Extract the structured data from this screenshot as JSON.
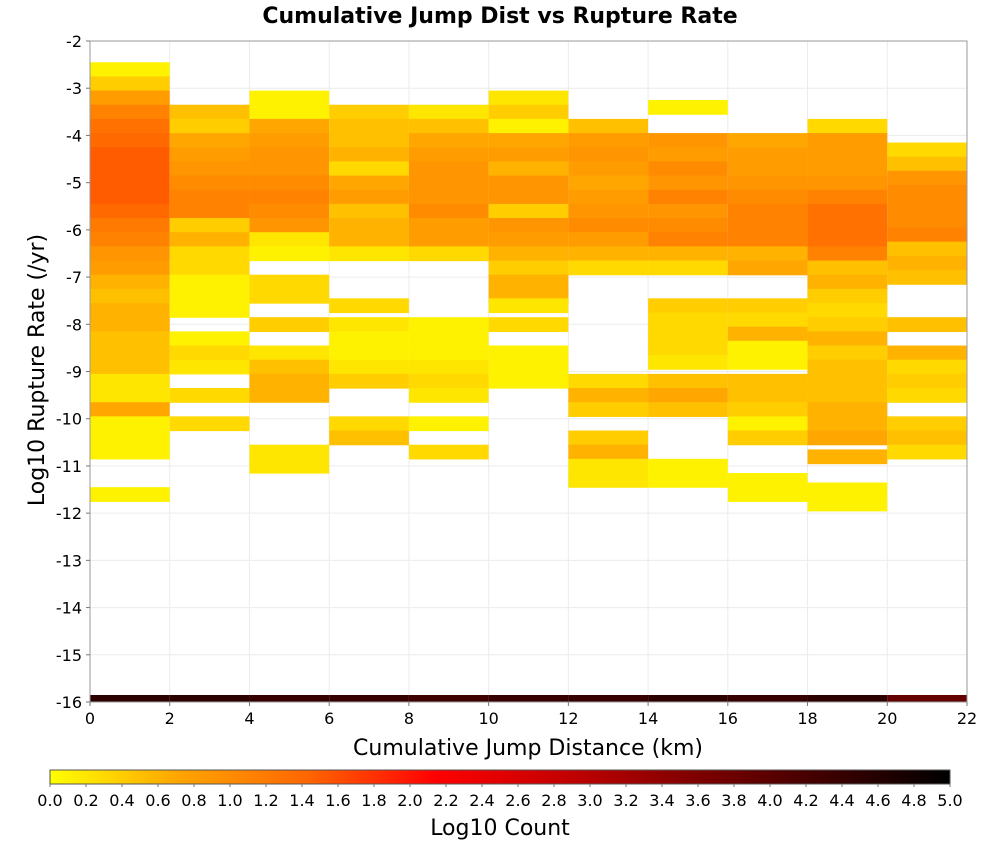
{
  "chart_data": {
    "type": "heatmap",
    "title": "Cumulative Jump Dist vs Rupture Rate",
    "xlabel": "Cumulative Jump Distance (km)",
    "ylabel": "Log10 Rupture Rate (/yr)",
    "xlim": [
      0,
      22
    ],
    "ylim": [
      -16,
      -2
    ],
    "x_ticks": [
      0,
      2,
      4,
      6,
      8,
      10,
      12,
      14,
      16,
      18,
      20,
      22
    ],
    "y_ticks": [
      -16,
      -15,
      -14,
      -13,
      -12,
      -11,
      -10,
      -9,
      -8,
      -7,
      -6,
      -5,
      -4,
      -3,
      -2
    ],
    "x_bin_width": 2,
    "y_bin_width": 0.3,
    "grid": true,
    "colorbar": {
      "label": "Log10 Count",
      "min": 0.0,
      "max": 5.0,
      "orientation": "horizontal",
      "position": "bottom",
      "ticks": [
        "0.0",
        "0.2",
        "0.4",
        "0.6",
        "0.8",
        "1.0",
        "1.2",
        "1.4",
        "1.6",
        "1.8",
        "2.0",
        "2.2",
        "2.4",
        "2.6",
        "2.8",
        "3.0",
        "3.2",
        "3.4",
        "3.6",
        "3.8",
        "4.0",
        "4.2",
        "4.4",
        "4.6",
        "4.8",
        "5.0"
      ],
      "colormap": [
        "#ffff00",
        "#ffa500",
        "#ff6600",
        "#ff0000",
        "#c40000",
        "#800000",
        "#400000",
        "#000000"
      ]
    },
    "columns": [
      {
        "x0": 0,
        "x1": 2,
        "cells": [
          [
            -2.6,
            0.1
          ],
          [
            -2.9,
            0.4
          ],
          [
            -3.2,
            0.8
          ],
          [
            -3.5,
            1.1
          ],
          [
            -3.8,
            1.3
          ],
          [
            -4.1,
            1.4
          ],
          [
            -4.4,
            1.5
          ],
          [
            -4.7,
            1.5
          ],
          [
            -5.0,
            1.5
          ],
          [
            -5.3,
            1.5
          ],
          [
            -5.6,
            1.4
          ],
          [
            -5.9,
            1.2
          ],
          [
            -6.2,
            1.1
          ],
          [
            -6.5,
            0.9
          ],
          [
            -6.8,
            0.8
          ],
          [
            -7.1,
            0.6
          ],
          [
            -7.4,
            0.5
          ],
          [
            -7.7,
            0.6
          ],
          [
            -8.0,
            0.6
          ],
          [
            -8.3,
            0.5
          ],
          [
            -8.6,
            0.5
          ],
          [
            -8.9,
            0.5
          ],
          [
            -9.2,
            0.2
          ],
          [
            -9.5,
            0.2
          ],
          [
            -9.8,
            0.7
          ],
          [
            -10.1,
            0.1
          ],
          [
            -10.4,
            0.1
          ],
          [
            -10.7,
            0.1
          ],
          [
            -11.6,
            0.1
          ]
        ]
      },
      {
        "x0": 2,
        "x1": 4,
        "cells": [
          [
            -3.5,
            0.5
          ],
          [
            -3.8,
            0.4
          ],
          [
            -4.1,
            0.7
          ],
          [
            -4.4,
            0.8
          ],
          [
            -4.7,
            0.9
          ],
          [
            -5.0,
            1.0
          ],
          [
            -5.3,
            1.1
          ],
          [
            -5.6,
            1.1
          ],
          [
            -5.9,
            0.4
          ],
          [
            -6.2,
            0.6
          ],
          [
            -6.5,
            0.3
          ],
          [
            -6.8,
            0.3
          ],
          [
            -7.1,
            0.1
          ],
          [
            -7.4,
            0.1
          ],
          [
            -7.7,
            0.1
          ],
          [
            -8.3,
            0.1
          ],
          [
            -8.6,
            0.3
          ],
          [
            -8.9,
            0.2
          ],
          [
            -9.5,
            0.3
          ],
          [
            -10.1,
            0.3
          ]
        ]
      },
      {
        "x0": 4,
        "x1": 6,
        "cells": [
          [
            -3.2,
            0.1
          ],
          [
            -3.5,
            0.1
          ],
          [
            -3.8,
            0.7
          ],
          [
            -4.1,
            0.8
          ],
          [
            -4.4,
            0.9
          ],
          [
            -4.7,
            0.9
          ],
          [
            -5.0,
            1.0
          ],
          [
            -5.3,
            1.1
          ],
          [
            -5.6,
            1.0
          ],
          [
            -5.9,
            0.9
          ],
          [
            -6.2,
            0.2
          ],
          [
            -6.5,
            0.1
          ],
          [
            -7.1,
            0.3
          ],
          [
            -7.4,
            0.3
          ],
          [
            -8.0,
            0.4
          ],
          [
            -8.6,
            0.2
          ],
          [
            -8.9,
            0.5
          ],
          [
            -9.2,
            0.6
          ],
          [
            -9.5,
            0.6
          ],
          [
            -10.7,
            0.2
          ],
          [
            -11.0,
            0.2
          ]
        ]
      },
      {
        "x0": 6,
        "x1": 8,
        "cells": [
          [
            -3.5,
            0.4
          ],
          [
            -3.8,
            0.5
          ],
          [
            -4.1,
            0.5
          ],
          [
            -4.4,
            0.6
          ],
          [
            -4.7,
            0.3
          ],
          [
            -5.0,
            0.7
          ],
          [
            -5.3,
            0.8
          ],
          [
            -5.6,
            0.5
          ],
          [
            -5.9,
            0.6
          ],
          [
            -6.2,
            0.6
          ],
          [
            -6.5,
            0.2
          ],
          [
            -7.6,
            0.3
          ],
          [
            -8.0,
            0.2
          ],
          [
            -8.3,
            0.1
          ],
          [
            -8.6,
            0.1
          ],
          [
            -8.9,
            0.2
          ],
          [
            -9.2,
            0.4
          ],
          [
            -10.1,
            0.3
          ],
          [
            -10.4,
            0.5
          ]
        ]
      },
      {
        "x0": 8,
        "x1": 10,
        "cells": [
          [
            -3.5,
            0.2
          ],
          [
            -3.8,
            0.5
          ],
          [
            -4.1,
            0.7
          ],
          [
            -4.4,
            0.8
          ],
          [
            -4.7,
            0.9
          ],
          [
            -5.0,
            0.9
          ],
          [
            -5.3,
            0.9
          ],
          [
            -5.6,
            1.0
          ],
          [
            -5.9,
            0.8
          ],
          [
            -6.2,
            0.8
          ],
          [
            -6.5,
            0.3
          ],
          [
            -8.0,
            0.1
          ],
          [
            -8.3,
            0.1
          ],
          [
            -8.6,
            0.1
          ],
          [
            -8.9,
            0.2
          ],
          [
            -9.2,
            0.3
          ],
          [
            -9.5,
            0.2
          ],
          [
            -10.1,
            0.1
          ],
          [
            -10.7,
            0.3
          ]
        ]
      },
      {
        "x0": 10,
        "x1": 12,
        "cells": [
          [
            -3.2,
            0.2
          ],
          [
            -3.5,
            0.4
          ],
          [
            -3.8,
            0.1
          ],
          [
            -4.1,
            0.7
          ],
          [
            -4.4,
            0.8
          ],
          [
            -4.7,
            0.6
          ],
          [
            -5.0,
            0.9
          ],
          [
            -5.3,
            0.9
          ],
          [
            -5.6,
            0.4
          ],
          [
            -5.9,
            0.9
          ],
          [
            -6.2,
            0.8
          ],
          [
            -6.5,
            0.6
          ],
          [
            -6.8,
            0.4
          ],
          [
            -7.1,
            0.6
          ],
          [
            -7.4,
            0.6
          ],
          [
            -7.6,
            0.2
          ],
          [
            -8.0,
            0.3
          ],
          [
            -8.6,
            0.1
          ],
          [
            -8.9,
            0.1
          ],
          [
            -9.2,
            0.1
          ]
        ]
      },
      {
        "x0": 12,
        "x1": 14,
        "cells": [
          [
            -3.8,
            0.5
          ],
          [
            -4.1,
            0.8
          ],
          [
            -4.4,
            0.9
          ],
          [
            -4.7,
            0.8
          ],
          [
            -5.0,
            0.7
          ],
          [
            -5.3,
            0.8
          ],
          [
            -5.6,
            0.9
          ],
          [
            -5.9,
            1.0
          ],
          [
            -6.2,
            0.8
          ],
          [
            -6.5,
            0.6
          ],
          [
            -6.8,
            0.3
          ],
          [
            -9.2,
            0.3
          ],
          [
            -9.5,
            0.6
          ],
          [
            -9.8,
            0.4
          ],
          [
            -10.4,
            0.4
          ],
          [
            -10.7,
            0.6
          ],
          [
            -11.0,
            0.2
          ],
          [
            -11.3,
            0.2
          ]
        ]
      },
      {
        "x0": 14,
        "x1": 16,
        "cells": [
          [
            -3.4,
            0.1
          ],
          [
            -4.1,
            0.9
          ],
          [
            -4.4,
            0.8
          ],
          [
            -4.7,
            1.0
          ],
          [
            -5.0,
            0.9
          ],
          [
            -5.3,
            1.1
          ],
          [
            -5.6,
            0.9
          ],
          [
            -5.9,
            1.0
          ],
          [
            -6.2,
            1.1
          ],
          [
            -6.5,
            0.6
          ],
          [
            -6.8,
            0.3
          ],
          [
            -7.6,
            0.4
          ],
          [
            -7.9,
            0.3
          ],
          [
            -8.2,
            0.3
          ],
          [
            -8.5,
            0.3
          ],
          [
            -8.8,
            0.2
          ],
          [
            -9.2,
            0.5
          ],
          [
            -9.5,
            0.7
          ],
          [
            -9.8,
            0.5
          ],
          [
            -11.0,
            0.1
          ],
          [
            -11.3,
            0.1
          ]
        ]
      },
      {
        "x0": 16,
        "x1": 18,
        "cells": [
          [
            -4.1,
            0.7
          ],
          [
            -4.4,
            0.8
          ],
          [
            -4.7,
            0.8
          ],
          [
            -5.0,
            0.9
          ],
          [
            -5.3,
            1.0
          ],
          [
            -5.6,
            1.1
          ],
          [
            -5.9,
            1.1
          ],
          [
            -6.2,
            1.1
          ],
          [
            -6.5,
            0.6
          ],
          [
            -6.8,
            0.7
          ],
          [
            -7.6,
            0.4
          ],
          [
            -7.9,
            0.3
          ],
          [
            -8.2,
            0.6
          ],
          [
            -8.5,
            0.1
          ],
          [
            -8.8,
            0.1
          ],
          [
            -9.2,
            0.5
          ],
          [
            -9.5,
            0.5
          ],
          [
            -9.8,
            0.4
          ],
          [
            -10.1,
            0.1
          ],
          [
            -10.4,
            0.4
          ],
          [
            -11.3,
            0.1
          ],
          [
            -11.6,
            0.1
          ]
        ]
      },
      {
        "x0": 18,
        "x1": 20,
        "cells": [
          [
            -3.8,
            0.3
          ],
          [
            -4.1,
            0.8
          ],
          [
            -4.4,
            0.8
          ],
          [
            -4.7,
            0.8
          ],
          [
            -5.0,
            0.9
          ],
          [
            -5.3,
            1.1
          ],
          [
            -5.6,
            1.3
          ],
          [
            -5.9,
            1.3
          ],
          [
            -6.2,
            1.3
          ],
          [
            -6.5,
            1.1
          ],
          [
            -6.8,
            0.5
          ],
          [
            -7.1,
            0.6
          ],
          [
            -7.4,
            0.4
          ],
          [
            -7.7,
            0.3
          ],
          [
            -8.0,
            0.4
          ],
          [
            -8.3,
            0.6
          ],
          [
            -8.6,
            0.4
          ],
          [
            -8.9,
            0.5
          ],
          [
            -9.2,
            0.5
          ],
          [
            -9.5,
            0.5
          ],
          [
            -9.8,
            0.6
          ],
          [
            -10.1,
            0.6
          ],
          [
            -10.4,
            0.7
          ],
          [
            -10.8,
            0.6
          ],
          [
            -11.5,
            0.1
          ],
          [
            -11.8,
            0.1
          ]
        ]
      },
      {
        "x0": 20,
        "x1": 22,
        "cells": [
          [
            -4.3,
            0.3
          ],
          [
            -4.6,
            0.5
          ],
          [
            -4.9,
            0.9
          ],
          [
            -5.2,
            1.0
          ],
          [
            -5.5,
            1.0
          ],
          [
            -5.8,
            1.0
          ],
          [
            -6.1,
            1.1
          ],
          [
            -6.4,
            0.5
          ],
          [
            -6.7,
            0.6
          ],
          [
            -7.0,
            0.5
          ],
          [
            -8.0,
            0.5
          ],
          [
            -8.6,
            0.6
          ],
          [
            -8.9,
            0.3
          ],
          [
            -9.2,
            0.4
          ],
          [
            -9.5,
            0.3
          ],
          [
            -10.1,
            0.4
          ],
          [
            -10.4,
            0.5
          ],
          [
            -10.7,
            0.3
          ]
        ]
      }
    ],
    "bottom_row": {
      "y": -16,
      "values": [
        4.5,
        4.5,
        4.4,
        4.4,
        4.3,
        4.4,
        4.4,
        4.5,
        4.4,
        4.5,
        3.9
      ]
    }
  }
}
